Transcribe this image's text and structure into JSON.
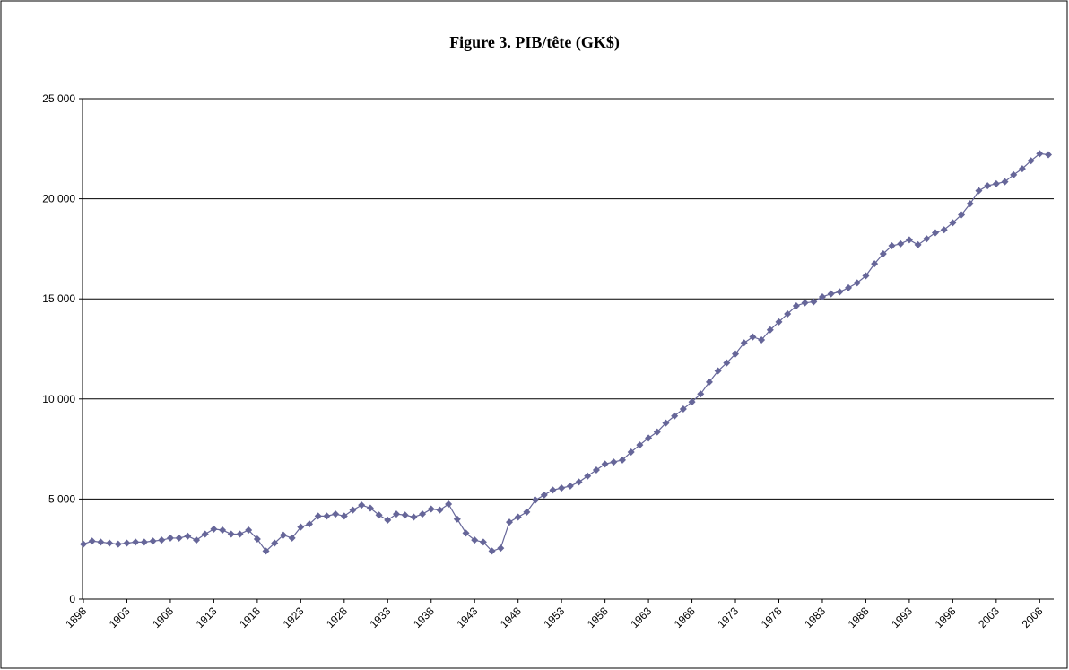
{
  "chart_data": {
    "type": "line",
    "title": "Figure 3. PIB/tête (GK$)",
    "color": "#666699",
    "marker": "diamond",
    "grid": true,
    "x": [
      1898,
      1899,
      1900,
      1901,
      1902,
      1903,
      1904,
      1905,
      1906,
      1907,
      1908,
      1909,
      1910,
      1911,
      1912,
      1913,
      1914,
      1915,
      1916,
      1917,
      1918,
      1919,
      1920,
      1921,
      1922,
      1923,
      1924,
      1925,
      1926,
      1927,
      1928,
      1929,
      1930,
      1931,
      1932,
      1933,
      1934,
      1935,
      1936,
      1937,
      1938,
      1939,
      1940,
      1941,
      1942,
      1943,
      1944,
      1945,
      1946,
      1947,
      1948,
      1949,
      1950,
      1951,
      1952,
      1953,
      1954,
      1955,
      1956,
      1957,
      1958,
      1959,
      1960,
      1961,
      1962,
      1963,
      1964,
      1965,
      1966,
      1967,
      1968,
      1969,
      1970,
      1971,
      1972,
      1973,
      1974,
      1975,
      1976,
      1977,
      1978,
      1979,
      1980,
      1981,
      1982,
      1983,
      1984,
      1985,
      1986,
      1987,
      1988,
      1989,
      1990,
      1991,
      1992,
      1993,
      1994,
      1995,
      1996,
      1997,
      1998,
      1999,
      2000,
      2001,
      2002,
      2003,
      2004,
      2005,
      2006,
      2007,
      2008,
      2009
    ],
    "values": [
      2750,
      2900,
      2850,
      2800,
      2750,
      2800,
      2850,
      2850,
      2900,
      2950,
      3050,
      3050,
      3150,
      2950,
      3250,
      3500,
      3450,
      3250,
      3250,
      3450,
      3000,
      2400,
      2800,
      3200,
      3050,
      3600,
      3750,
      4150,
      4150,
      4250,
      4150,
      4450,
      4700,
      4550,
      4200,
      3950,
      4250,
      4200,
      4100,
      4250,
      4500,
      4450,
      4750,
      4000,
      3300,
      2950,
      2850,
      2400,
      2550,
      3850,
      4100,
      4350,
      4950,
      5200,
      5450,
      5550,
      5650,
      5850,
      6150,
      6450,
      6750,
      6850,
      6950,
      7350,
      7700,
      8050,
      8350,
      8800,
      9150,
      9500,
      9850,
      10250,
      10850,
      11400,
      11800,
      12250,
      12800,
      13100,
      12950,
      13450,
      13850,
      14250,
      14650,
      14800,
      14850,
      15100,
      15250,
      15350,
      15550,
      15800,
      16150,
      16750,
      17250,
      17650,
      17750,
      17950,
      17700,
      18000,
      18300,
      18450,
      18800,
      19200,
      19750,
      20400,
      20650,
      20750,
      20850,
      21200,
      21500,
      21900,
      22250,
      22200
    ],
    "xlim": [
      1898,
      2009
    ],
    "xticks": [
      1898,
      1903,
      1908,
      1913,
      1918,
      1923,
      1928,
      1933,
      1938,
      1943,
      1948,
      1953,
      1958,
      1963,
      1968,
      1973,
      1978,
      1983,
      1988,
      1993,
      1998,
      2003,
      2008
    ],
    "ylim": [
      0,
      25000
    ],
    "yticks": [
      0,
      {
        "value": 5000,
        "label": "5 000"
      },
      {
        "value": 10000,
        "label": "10 000"
      },
      {
        "value": 15000,
        "label": "15 000"
      },
      {
        "value": 20000,
        "label": "20 000"
      },
      {
        "value": 25000,
        "label": "25 000"
      }
    ]
  }
}
